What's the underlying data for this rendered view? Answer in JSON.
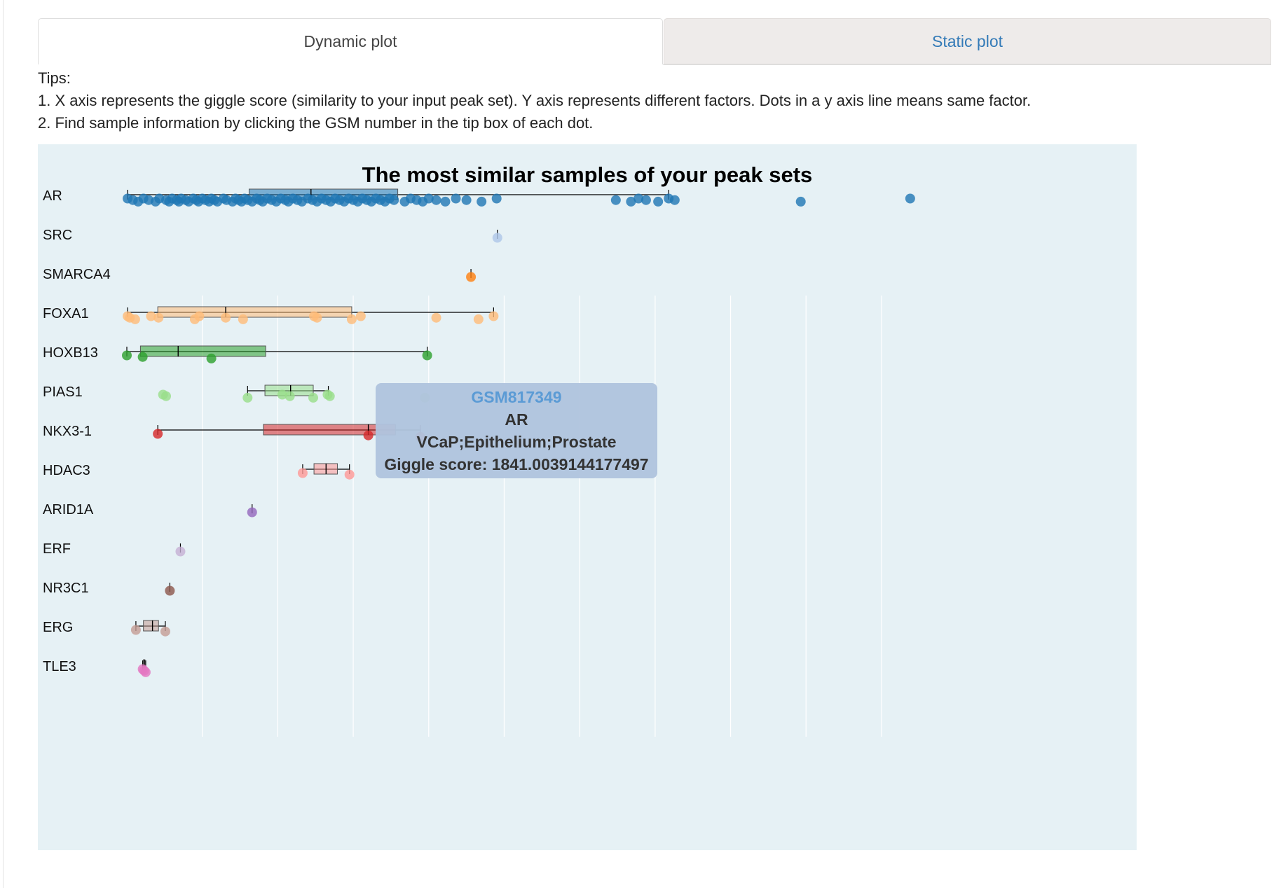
{
  "tabs": {
    "dynamic_label": "Dynamic plot",
    "static_label": "Static plot"
  },
  "tips": {
    "heading": "Tips:",
    "line1": "1. X axis represents the giggle score (similarity to your input peak set). Y axis represents different factors. Dots in a y axis line means same factor.",
    "line2": "2. Find sample information by clicking the GSM number in the tip box of each dot."
  },
  "tooltip": {
    "gsm": "GSM817349",
    "factor": "AR",
    "sample": "VCaP;Epithelium;Prostate",
    "score": "Giggle score: 1841.0039144177497"
  },
  "colors": {
    "background": "#e6f1f5",
    "tab_link": "#337ab7",
    "tooltip_bg": "#b0c4de"
  },
  "chart_data": {
    "type": "box",
    "title": "The most similar samples of your peak sets",
    "xlim": [
      0,
      5200
    ],
    "grid": "vertical lines only, no tick labels shown",
    "categories": [
      "AR",
      "SRC",
      "SMARCA4",
      "FOXA1",
      "HOXB13",
      "PIAS1",
      "NKX3-1",
      "HDAC3",
      "ARID1A",
      "ERF",
      "NR3C1",
      "ERG",
      "TLE3"
    ],
    "series": [
      {
        "category": "AR",
        "color": "#1f77b4",
        "box": {
          "min": 5,
          "q1": 810,
          "median": 1220,
          "q3": 1795,
          "max": 3590
        },
        "points": [
          5,
          40,
          75,
          110,
          145,
          190,
          215,
          260,
          280,
          300,
          330,
          345,
          360,
          390,
          410,
          440,
          460,
          475,
          500,
          520,
          545,
          560,
          580,
          600,
          640,
          660,
          700,
          720,
          740,
          760,
          780,
          800,
          830,
          860,
          880,
          900,
          930,
          960,
          990,
          1020,
          1050,
          1070,
          1100,
          1130,
          1160,
          1200,
          1230,
          1260,
          1290,
          1320,
          1350,
          1380,
          1410,
          1440,
          1470,
          1500,
          1530,
          1560,
          1590,
          1620,
          1650,
          1680,
          1710,
          1740,
          1770,
          1841,
          1880,
          1920,
          1960,
          2000,
          2050,
          2110,
          2180,
          2250,
          2350,
          2450,
          3240,
          3340,
          3390,
          3440,
          3520,
          3590,
          3630,
          4465,
          5190
        ]
      },
      {
        "category": "SRC",
        "color": "#aec7e8",
        "box": null,
        "points": [
          2455
        ]
      },
      {
        "category": "SMARCA4",
        "color": "#ff7f0e",
        "box": null,
        "points": [
          2280
        ]
      },
      {
        "category": "FOXA1",
        "color": "#ffbb78",
        "box": {
          "min": 5,
          "q1": 205,
          "median": 655,
          "q3": 1490,
          "max": 2430
        },
        "points": [
          5,
          20,
          55,
          160,
          210,
          450,
          480,
          655,
          770,
          1240,
          1260,
          1490,
          1550,
          2050,
          2330,
          2430
        ]
      },
      {
        "category": "HOXB13",
        "color": "#2ca02c",
        "box": {
          "min": 0,
          "q1": 90,
          "median": 340,
          "q3": 920,
          "max": 1990
        },
        "points": [
          0,
          105,
          560,
          1990
        ]
      },
      {
        "category": "PIAS1",
        "color": "#98df8a",
        "box": {
          "min": 800,
          "q1": 915,
          "median": 1085,
          "q3": 1235,
          "max": 1335
        },
        "points": [
          240,
          260,
          800,
          1030,
          1080,
          1235,
          1330,
          1345,
          1975
        ]
      },
      {
        "category": "NKX3-1",
        "color": "#d62728",
        "box": {
          "min": 205,
          "q1": 905,
          "median": 1600,
          "q3": 1780,
          "max": 1945
        },
        "points": [
          205,
          1600,
          1945
        ]
      },
      {
        "category": "HDAC3",
        "color": "#ff9896",
        "box": {
          "min": 1165,
          "q1": 1240,
          "median": 1320,
          "q3": 1395,
          "max": 1475
        },
        "points": [
          1165,
          1475
        ]
      },
      {
        "category": "ARID1A",
        "color": "#9467bd",
        "box": null,
        "points": [
          830
        ]
      },
      {
        "category": "ERF",
        "color": "#c5b0d5",
        "box": null,
        "points": [
          355
        ]
      },
      {
        "category": "NR3C1",
        "color": "#8c564b",
        "box": null,
        "points": [
          285
        ]
      },
      {
        "category": "ERG",
        "color": "#c49c94",
        "box": {
          "min": 60,
          "q1": 110,
          "median": 170,
          "q3": 210,
          "max": 255
        },
        "points": [
          60,
          255
        ]
      },
      {
        "category": "TLE3",
        "color": "#e377c2",
        "box": {
          "min": 105,
          "q1": 110,
          "median": 115,
          "q3": 120,
          "max": 125
        },
        "points": [
          105,
          115,
          125
        ]
      }
    ]
  }
}
